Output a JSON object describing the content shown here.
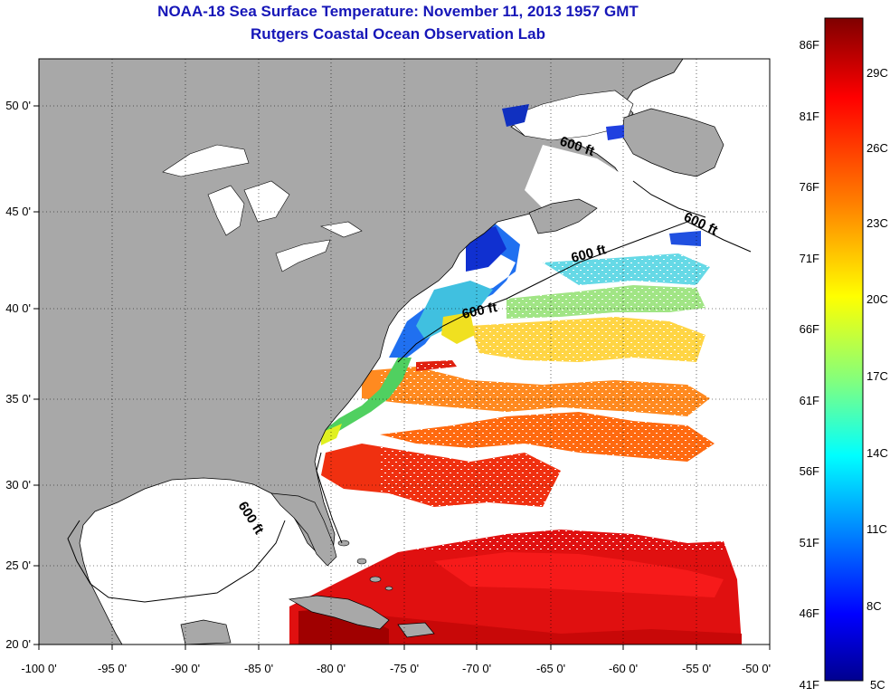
{
  "title_line1": "NOAA-18 Sea Surface Temperature:  November 11, 2013 1957 GMT",
  "title_line2": "Rutgers Coastal Ocean Observation Lab",
  "map": {
    "lon_ticks": [
      "-100 0'",
      "-95 0'",
      "-90 0'",
      "-85 0'",
      "-80 0'",
      "-75 0'",
      "-70 0'",
      "-65 0'",
      "-60 0'",
      "-55 0'",
      "-50 0'"
    ],
    "lat_ticks": [
      "50 0'",
      "45 0'",
      "40 0'",
      "35 0'",
      "30 0'",
      "25 0'",
      "20 0'"
    ],
    "isobath_label": "600 ft",
    "land_color": "#a8a8a8",
    "cloud_color": "#ffffff"
  },
  "colorbar": {
    "fahrenheit": [
      "86F",
      "81F",
      "76F",
      "71F",
      "66F",
      "61F",
      "56F",
      "51F",
      "46F",
      "41F"
    ],
    "celsius": [
      "29C",
      "26C",
      "23C",
      "20C",
      "17C",
      "14C",
      "11C",
      "8C",
      "5C"
    ],
    "colors": [
      "#7f0000",
      "#ff0000",
      "#ff8000",
      "#ffff00",
      "#80ff80",
      "#00ffff",
      "#0080ff",
      "#0000ff",
      "#00008f"
    ]
  }
}
